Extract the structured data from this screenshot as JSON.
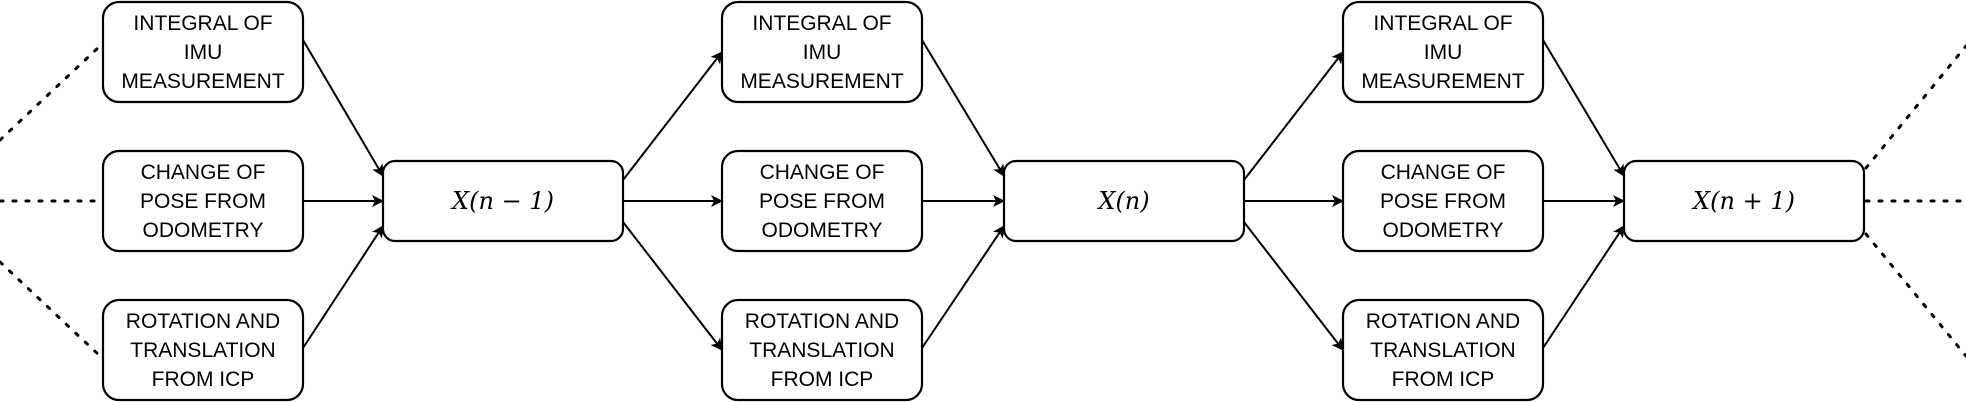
{
  "groups": [
    {
      "inputs": [
        {
          "kind": "imu",
          "lines": [
            "INTEGRAL OF",
            "IMU",
            "MEASUREMENT"
          ]
        },
        {
          "kind": "odometry",
          "lines": [
            "CHANGE OF",
            "POSE FROM",
            "ODOMETRY"
          ]
        },
        {
          "kind": "icp",
          "lines": [
            "ROTATION AND",
            "TRANSLATION",
            "FROM ICP"
          ]
        }
      ],
      "state": {
        "label": "X(n − 1)"
      }
    },
    {
      "inputs": [
        {
          "kind": "imu",
          "lines": [
            "INTEGRAL OF",
            "IMU",
            "MEASUREMENT"
          ]
        },
        {
          "kind": "odometry",
          "lines": [
            "CHANGE OF",
            "POSE FROM",
            "ODOMETRY"
          ]
        },
        {
          "kind": "icp",
          "lines": [
            "ROTATION AND",
            "TRANSLATION",
            "FROM ICP"
          ]
        }
      ],
      "state": {
        "label": "X(n)"
      }
    },
    {
      "inputs": [
        {
          "kind": "imu",
          "lines": [
            "INTEGRAL OF",
            "IMU",
            "MEASUREMENT"
          ]
        },
        {
          "kind": "odometry",
          "lines": [
            "CHANGE OF",
            "POSE FROM",
            "ODOMETRY"
          ]
        },
        {
          "kind": "icp",
          "lines": [
            "ROTATION AND",
            "TRANSLATION",
            "FROM ICP"
          ]
        }
      ],
      "state": {
        "label": "X(n + 1)"
      }
    }
  ],
  "colors": {
    "stroke": "#000000",
    "fill": "#ffffff"
  }
}
